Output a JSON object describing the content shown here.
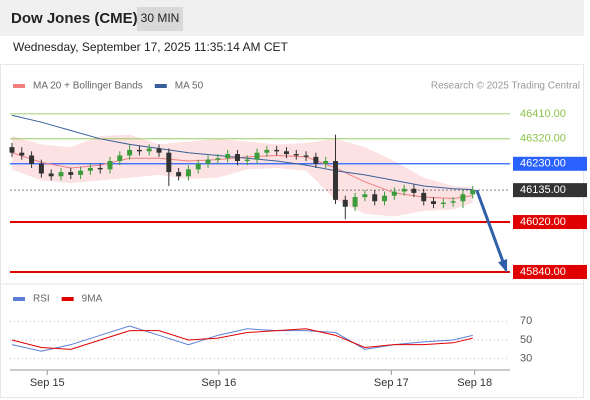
{
  "header": {
    "title": "Dow Jones (CME)",
    "timeframe": "30 MIN",
    "datetime": "Wednesday, September 17, 2025 11:35:14 AM CET"
  },
  "chart_data": [
    {
      "type": "candlestick",
      "credit": "Research © 2025 Trading Central",
      "x": [
        0,
        1,
        2,
        3,
        4,
        5,
        6,
        7,
        8,
        9,
        10,
        11,
        12,
        13,
        14,
        15,
        16,
        17,
        18,
        19,
        20,
        21,
        22,
        23,
        24,
        25,
        26,
        27,
        28,
        29,
        30,
        31,
        32,
        33,
        34,
        35,
        36,
        37,
        38,
        39,
        40,
        41,
        42,
        43,
        44,
        45,
        46,
        47
      ],
      "open": [
        46290,
        46270,
        46260,
        46230,
        46195,
        46185,
        46200,
        46190,
        46205,
        46215,
        46210,
        46240,
        46260,
        46280,
        46275,
        46285,
        46270,
        46200,
        46185,
        46210,
        46230,
        46245,
        46250,
        46265,
        46240,
        46245,
        46270,
        46280,
        46275,
        46265,
        46260,
        46255,
        46230,
        46240,
        46100,
        46075,
        46110,
        46120,
        46095,
        46115,
        46130,
        46140,
        46125,
        46095,
        46085,
        46090,
        46095,
        46120
      ],
      "high": [
        46305,
        46290,
        46275,
        46245,
        46210,
        46215,
        46215,
        46220,
        46230,
        46230,
        46255,
        46275,
        46300,
        46295,
        46300,
        46300,
        46285,
        46215,
        46225,
        46245,
        46260,
        46265,
        46280,
        46280,
        46260,
        46285,
        46295,
        46295,
        46290,
        46280,
        46275,
        46270,
        46255,
        46335,
        46115,
        46125,
        46135,
        46135,
        46130,
        46145,
        46155,
        46155,
        46140,
        46110,
        46105,
        46110,
        46135,
        46150
      ],
      "low": [
        46255,
        46245,
        46215,
        46180,
        46170,
        46170,
        46175,
        46175,
        46190,
        46195,
        46195,
        46225,
        46245,
        46260,
        46260,
        46255,
        46150,
        46170,
        46170,
        46195,
        46215,
        46230,
        46235,
        46225,
        46225,
        46230,
        46255,
        46260,
        46250,
        46245,
        46240,
        46215,
        46215,
        46085,
        46030,
        46060,
        46095,
        46080,
        46080,
        46100,
        46115,
        46110,
        46080,
        46070,
        46070,
        46075,
        46070,
        46105
      ],
      "close": [
        46270,
        46260,
        46230,
        46195,
        46185,
        46200,
        46190,
        46205,
        46215,
        46210,
        46240,
        46260,
        46280,
        46275,
        46285,
        46270,
        46200,
        46185,
        46210,
        46230,
        46245,
        46250,
        46265,
        46240,
        46245,
        46270,
        46280,
        46275,
        46265,
        46260,
        46255,
        46230,
        46240,
        46100,
        46075,
        46110,
        46120,
        46095,
        46115,
        46130,
        46140,
        46125,
        46095,
        46085,
        46090,
        46095,
        46120,
        46135
      ],
      "up_color": "#3c9c3c",
      "down_color": "#333333",
      "series": [
        {
          "name": "MA 20 + Bollinger Bands",
          "color": "#f08080",
          "x": [
            0,
            3,
            6,
            9,
            12,
            15,
            18,
            21,
            24,
            27,
            30,
            33,
            36,
            39,
            42,
            45,
            47
          ],
          "values": [
            46270,
            46235,
            46215,
            46225,
            46250,
            46250,
            46240,
            46245,
            46255,
            46260,
            46255,
            46215,
            46165,
            46125,
            46110,
            46105,
            46115
          ],
          "band_upper": [
            46330,
            46300,
            46290,
            46330,
            46335,
            46300,
            46310,
            46320,
            46310,
            46300,
            46305,
            46320,
            46290,
            46240,
            46180,
            46150,
            46145
          ],
          "band_lower": [
            46210,
            46170,
            46160,
            46170,
            46180,
            46190,
            46175,
            46180,
            46210,
            46215,
            46205,
            46100,
            46050,
            46040,
            46060,
            46065,
            46090
          ],
          "band_color": "#fbd5d5"
        },
        {
          "name": "MA 50",
          "color": "#3a5f9a",
          "x": [
            0,
            3,
            6,
            9,
            12,
            15,
            18,
            21,
            24,
            27,
            30,
            33,
            36,
            39,
            42,
            45,
            47
          ],
          "values": [
            46405,
            46380,
            46350,
            46320,
            46300,
            46285,
            46270,
            46260,
            46250,
            46240,
            46225,
            46205,
            46190,
            46170,
            46150,
            46140,
            46137
          ]
        }
      ],
      "levels": [
        {
          "value": 46410,
          "label": "46410.00",
          "color": "#8bc34a",
          "boxed": false
        },
        {
          "value": 46320,
          "label": "46320.00",
          "color": "#8bc34a",
          "boxed": false
        },
        {
          "value": 46230,
          "label": "46230.00",
          "color": "#2962ff",
          "boxed": true
        },
        {
          "value": 46135,
          "label": "46135.00",
          "color": "#333333",
          "boxed": true
        },
        {
          "value": 46020,
          "label": "46020.00",
          "color": "#e00000",
          "boxed": true
        },
        {
          "value": 45840,
          "label": "45840.00",
          "color": "#e00000",
          "boxed": true
        }
      ],
      "xlim": [
        -0.2,
        50.8
      ],
      "ylim": [
        45811,
        46478
      ]
    },
    {
      "type": "line",
      "x": [
        0,
        3,
        6,
        9,
        12,
        15,
        18,
        21,
        24,
        27,
        30,
        33,
        36,
        39,
        42,
        45,
        47
      ],
      "series": [
        {
          "name": "RSI",
          "color": "#5b7fd6",
          "values": [
            45,
            38,
            45,
            55,
            65,
            55,
            45,
            55,
            62,
            60,
            60,
            58,
            40,
            45,
            48,
            50,
            55
          ]
        },
        {
          "name": "9MA",
          "color": "#e00000",
          "values": [
            50,
            42,
            40,
            50,
            60,
            60,
            50,
            52,
            58,
            60,
            62,
            55,
            42,
            45,
            45,
            47,
            52
          ]
        }
      ],
      "xlim": [
        -0.2,
        50.8
      ],
      "ylim": [
        20,
        80
      ],
      "yticks": [
        30,
        50,
        70
      ],
      "xticks": [
        {
          "value": 3.6,
          "label": "Sep 15"
        },
        {
          "value": 21.1,
          "label": "Sep 16"
        },
        {
          "value": 38.7,
          "label": "Sep 17"
        },
        {
          "value": 47.2,
          "label": "Sep 18"
        }
      ]
    }
  ]
}
